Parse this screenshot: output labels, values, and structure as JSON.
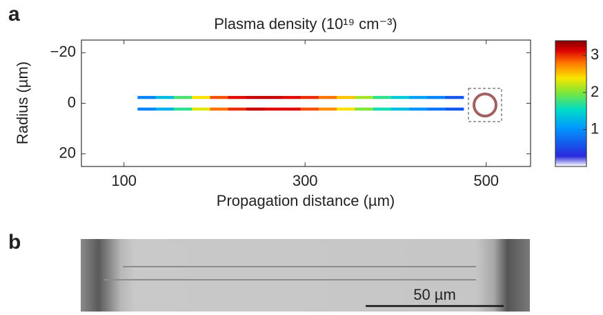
{
  "panel_a_label": "a",
  "chart_data": {
    "type": "density-map",
    "title": "Plasma density (10¹⁹ cm⁻³)",
    "x_label": "Propagation distance (µm)",
    "y_label": "Radius (µm)",
    "xlim": [
      53,
      549
    ],
    "xticks": [
      100,
      300,
      500
    ],
    "ylim": [
      -25,
      25
    ],
    "yticks": [
      {
        "value": -20,
        "label": "−20"
      },
      0,
      20
    ],
    "x": [
      115,
      135,
      155,
      175,
      195,
      215,
      235,
      255,
      275,
      295,
      315,
      335,
      355,
      375,
      395,
      415,
      435,
      455
    ],
    "lines": [
      {
        "r": -2.3,
        "density": [
          0.9,
          1.3,
          1.8,
          2.4,
          2.9,
          3.1,
          3.2,
          3.2,
          3.1,
          3.0,
          2.8,
          2.5,
          2.1,
          1.7,
          1.4,
          1.1,
          0.9,
          0.6
        ]
      },
      {
        "r": 2.3,
        "density": [
          0.9,
          1.2,
          1.7,
          2.3,
          2.8,
          3.0,
          3.2,
          3.1,
          3.1,
          2.9,
          2.7,
          2.4,
          2.0,
          1.6,
          1.3,
          1.0,
          0.8,
          0.6
        ]
      }
    ],
    "clim": [
      0,
      3.4
    ],
    "cticks": [
      1,
      2,
      3
    ]
  },
  "panel_b_label": "b",
  "scale_bar": "50 µm"
}
